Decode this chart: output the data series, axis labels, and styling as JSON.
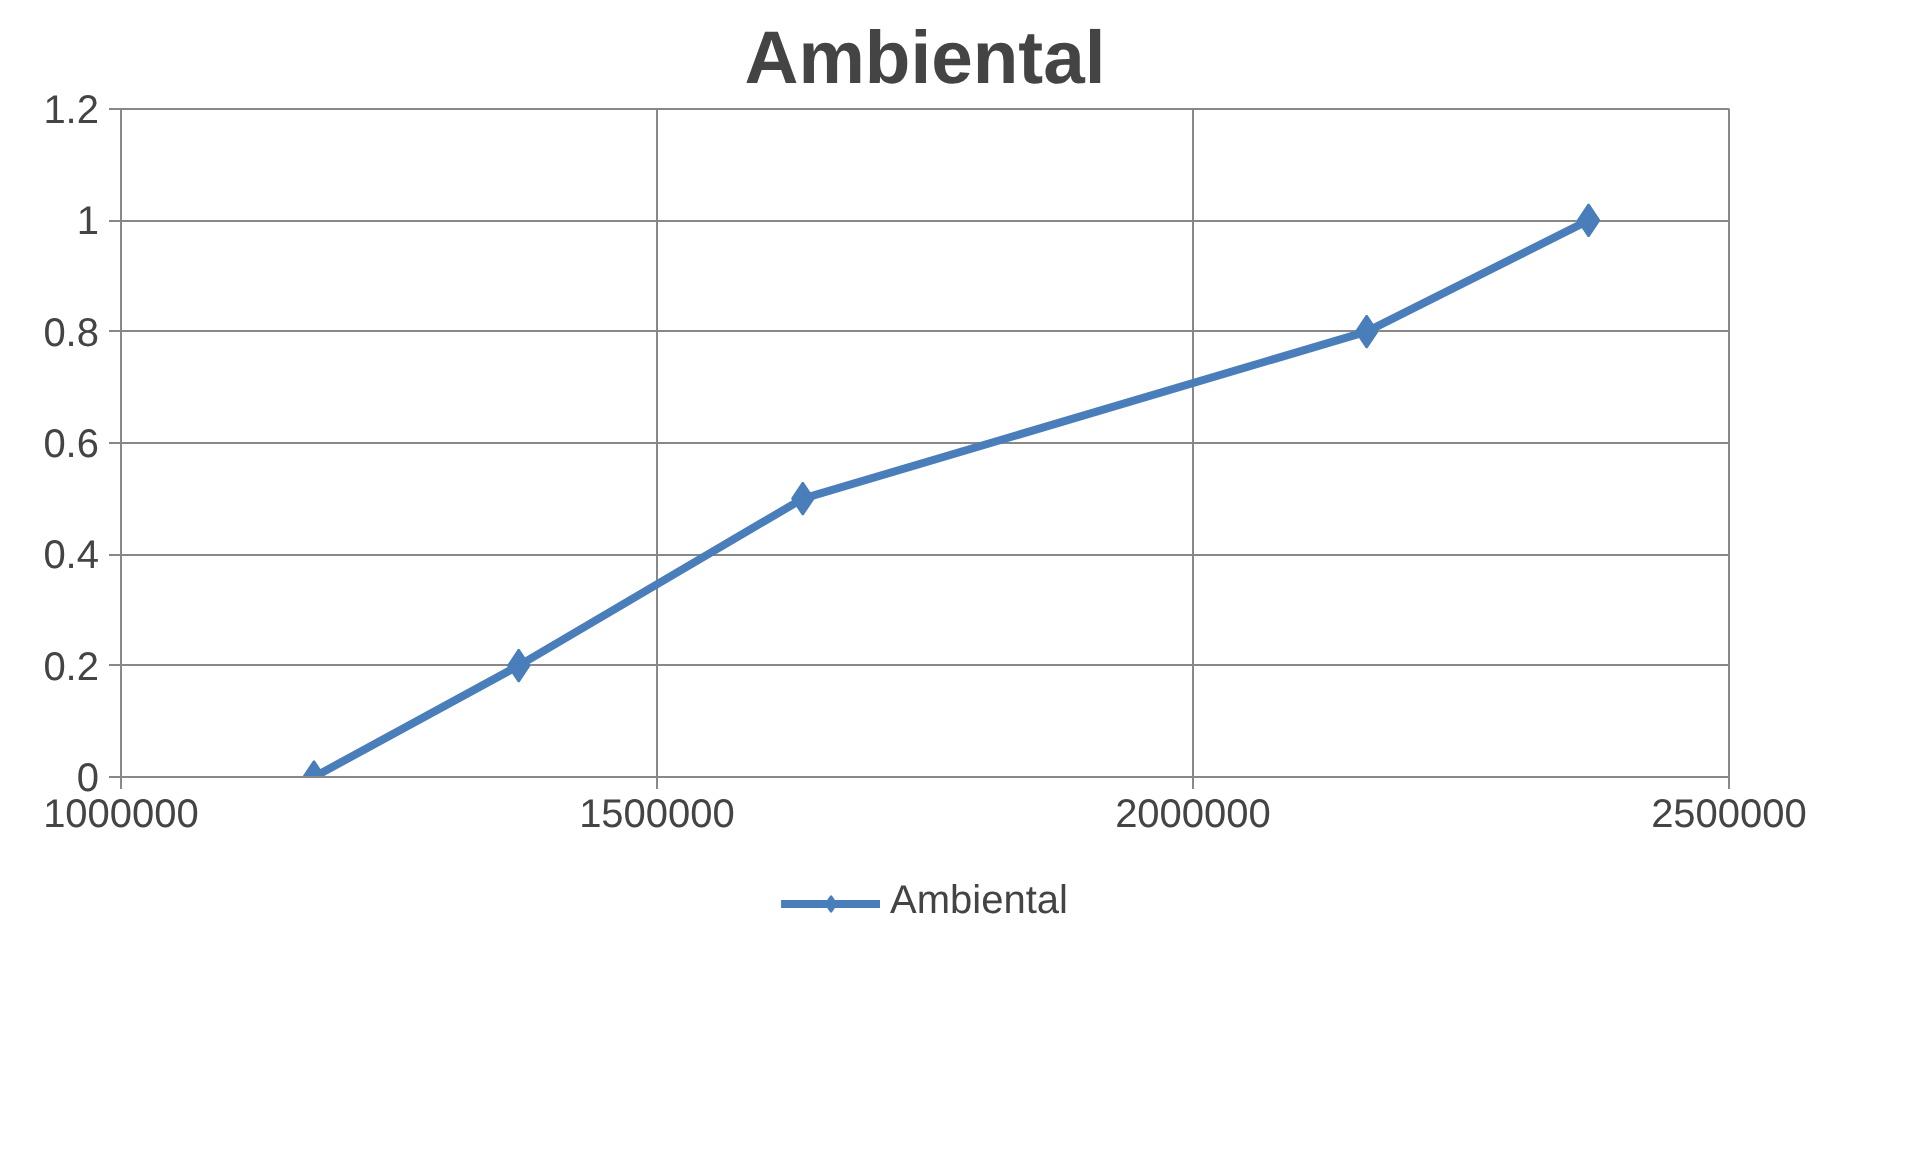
{
  "chart_data": {
    "type": "line",
    "title": "Ambiental",
    "series": [
      {
        "name": "Ambiental",
        "color": "#4a7ebb",
        "x": [
          1180000,
          1371000,
          1636000,
          2162000,
          2369000
        ],
        "values": [
          0,
          0.2,
          0.5,
          0.8,
          1
        ]
      }
    ],
    "xlim": [
      1000000,
      2500000
    ],
    "xticks": [
      1000000,
      1500000,
      2000000,
      2500000
    ],
    "ylim": [
      0,
      1.2
    ],
    "yticks": [
      0,
      0.2,
      0.4,
      0.6,
      0.8,
      1,
      1.2
    ],
    "grid": true,
    "legend": "bottom",
    "marker": "diamond",
    "line_style": "solid"
  }
}
